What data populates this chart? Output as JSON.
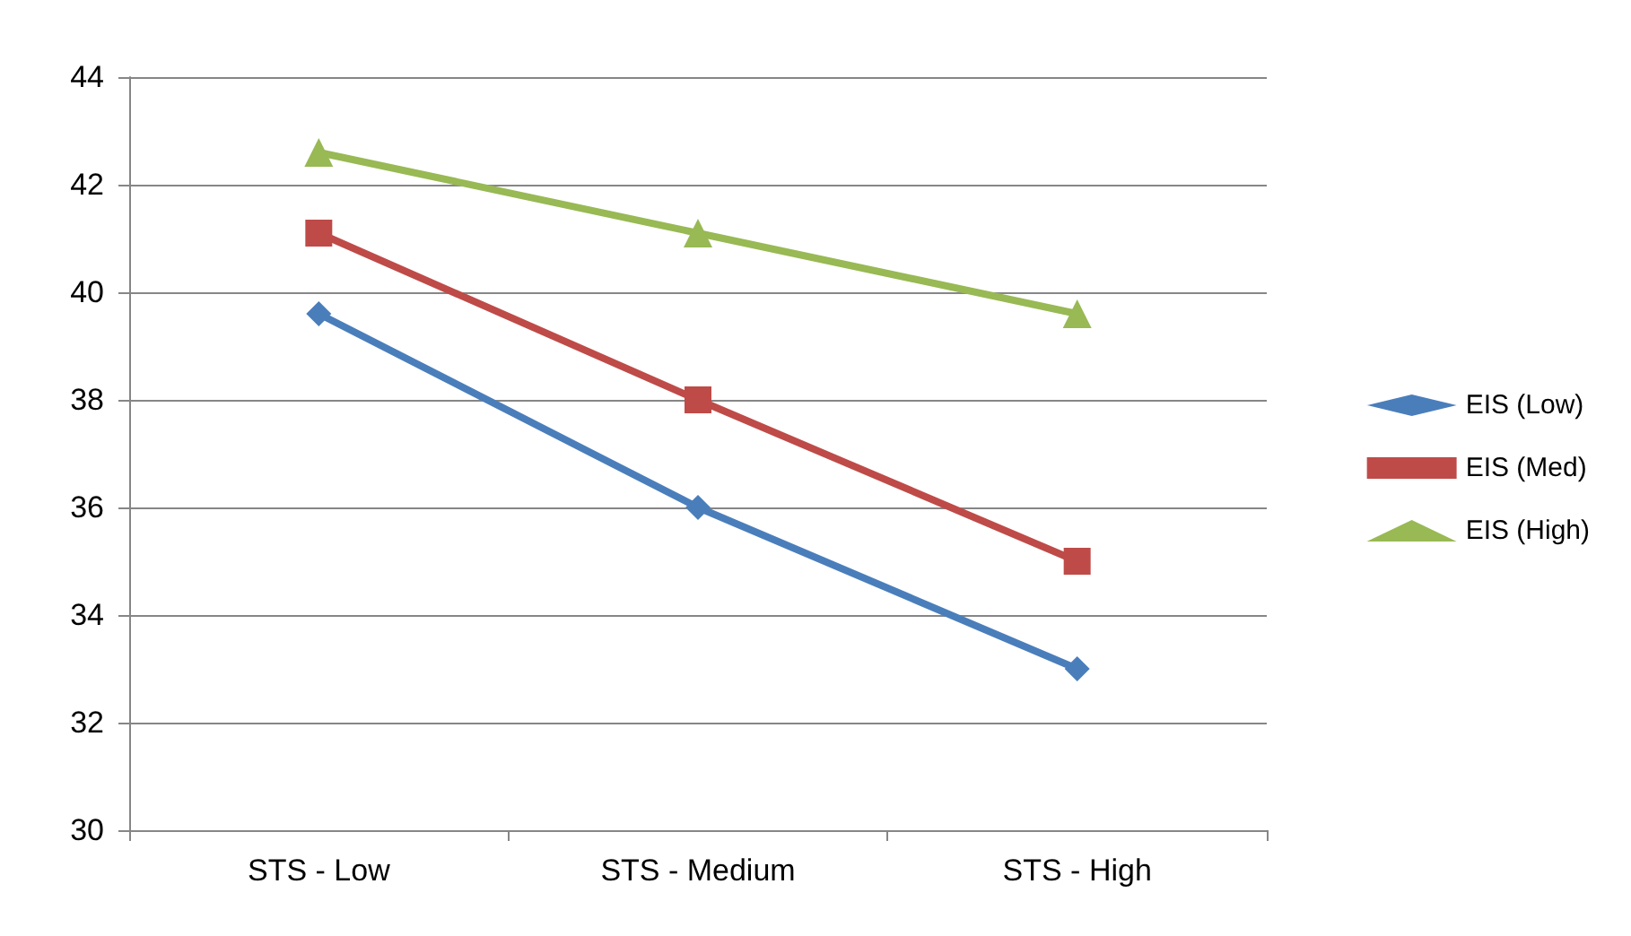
{
  "chart_data": {
    "type": "line",
    "categories": [
      "STS - Low",
      "STS - Medium",
      "STS - High"
    ],
    "series": [
      {
        "name": "EIS (Low)",
        "color": "#4a7ebb",
        "marker": "diamond",
        "values": [
          39.6,
          36,
          33
        ]
      },
      {
        "name": "EIS (Med)",
        "color": "#be4b48",
        "marker": "square",
        "values": [
          41.1,
          38,
          35
        ]
      },
      {
        "name": "EIS (High)",
        "color": "#98b954",
        "marker": "triangle",
        "values": [
          42.6,
          41.1,
          39.6
        ]
      }
    ],
    "ylim": [
      30,
      44
    ],
    "yticks": [
      30,
      32,
      34,
      36,
      38,
      40,
      42,
      44
    ],
    "grid": "y",
    "legend": "right",
    "line_style": "solid"
  }
}
